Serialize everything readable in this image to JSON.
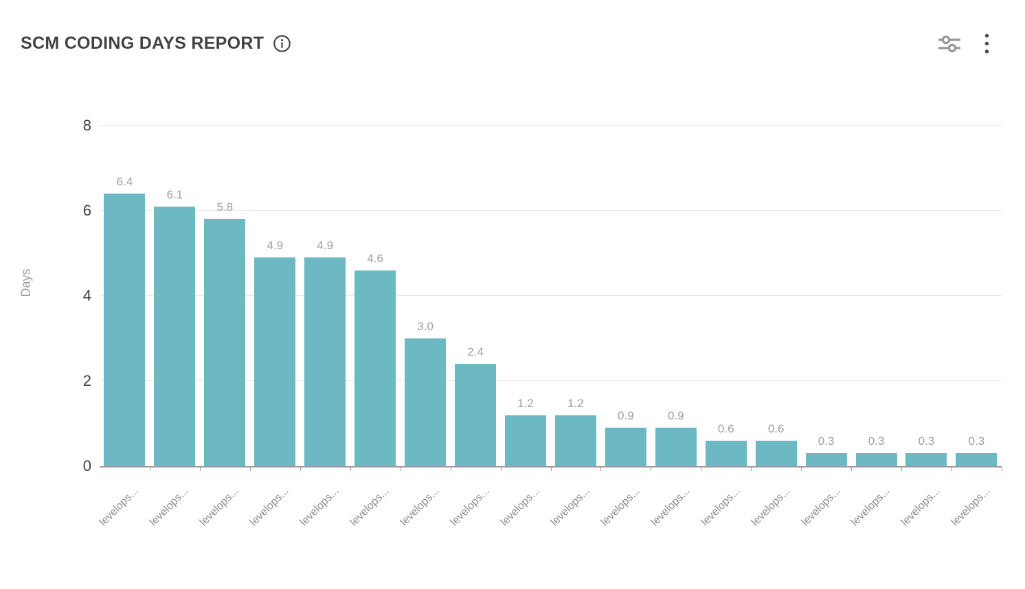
{
  "header": {
    "title": "SCM CODING DAYS REPORT",
    "info_icon": "info-icon",
    "actions": [
      {
        "name": "filters",
        "icon": "sliders-icon"
      },
      {
        "name": "more-options",
        "icon": "kebab-menu-icon"
      }
    ]
  },
  "chart_data": {
    "type": "bar",
    "title": "SCM CODING DAYS REPORT",
    "categories": [
      "levelops...",
      "levelops...",
      "levelops...",
      "levelops...",
      "levelops...",
      "levelops...",
      "levelops...",
      "levelops...",
      "levelops...",
      "levelops...",
      "levelops...",
      "levelops...",
      "levelops...",
      "levelops...",
      "levelops...",
      "levelops...",
      "levelops...",
      "levelops..."
    ],
    "values": [
      6.4,
      6.1,
      5.8,
      4.9,
      4.9,
      4.6,
      3.0,
      2.4,
      1.2,
      1.2,
      0.9,
      0.9,
      0.6,
      0.6,
      0.3,
      0.3,
      0.3,
      0.3
    ],
    "value_labels": [
      "6.4",
      "6.1",
      "5.8",
      "4.9",
      "4.9",
      "4.6",
      "3.0",
      "2.4",
      "1.2",
      "1.2",
      "0.9",
      "0.9",
      "0.6",
      "0.6",
      "0.3",
      "0.3",
      "0.3",
      "0.3"
    ],
    "xlabel": "",
    "ylabel": "Days",
    "ylim": [
      0,
      8
    ],
    "yticks": [
      0,
      2,
      4,
      6,
      8
    ],
    "grid": true,
    "legend": false,
    "colors": {
      "bar": "#6cb9c3",
      "value_label": "#9e9e9e",
      "y_tick_label": "#3d3d3d",
      "x_label": "#8c8c8c",
      "gridline": "#e9e9e9",
      "axis_line": "#9b9b9b",
      "title": "#424242"
    }
  }
}
